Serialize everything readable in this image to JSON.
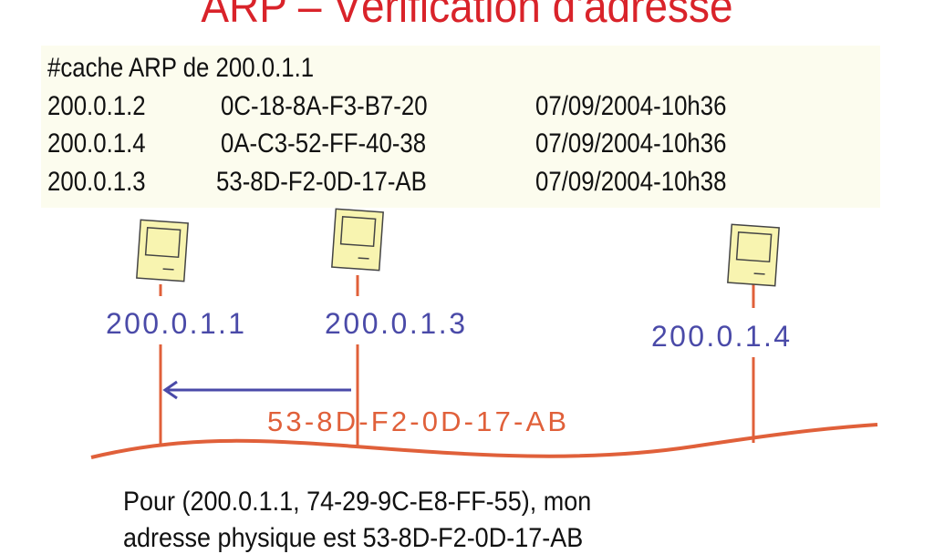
{
  "title": "ARP – Vérification d'adresse",
  "cache": {
    "header": "#cache ARP de 200.0.1.1",
    "rows": [
      {
        "ip": "200.0.1.2",
        "mac": "0C-18-8A-F3-B7-20",
        "time": "07/09/2004-10h36"
      },
      {
        "ip": "200.0.1.4",
        "mac": "0A-C3-52-FF-40-38",
        "time": "07/09/2004-10h36"
      },
      {
        "ip": "200.0.1.3",
        "mac": "53-8D-F2-0D-17-AB",
        "time": "07/09/2004-10h38"
      }
    ]
  },
  "diagram": {
    "hosts": [
      {
        "label": "200.0.1.1"
      },
      {
        "label": "200.0.1.3"
      },
      {
        "label": "200.0.1.4"
      }
    ],
    "reply_label": "53-8D-F2-0D-17-AB",
    "colors": {
      "title": "#d9232a",
      "wire": "#e0603a",
      "host_label": "#4a4aa8",
      "arrow": "#4a4aa8",
      "computer": "#f8f4b0"
    }
  },
  "message": {
    "line1": "Pour (200.0.1.1, 74-29-9C-E8-FF-55), mon",
    "line2": "adresse physique est 53-8D-F2-0D-17-AB"
  }
}
